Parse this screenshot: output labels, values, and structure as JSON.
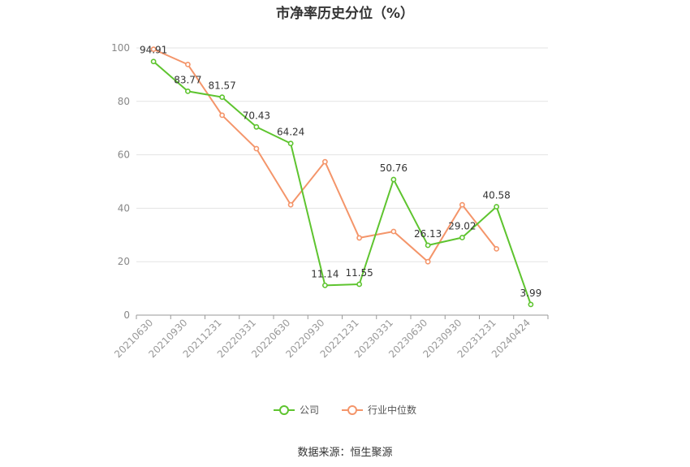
{
  "chart_data": {
    "type": "line",
    "title": "市净率历史分位（%）",
    "categories": [
      "20210630",
      "20210930",
      "20211231",
      "20220331",
      "20220630",
      "20220930",
      "20221231",
      "20230331",
      "20230630",
      "20230930",
      "20231231",
      "20240424"
    ],
    "ylim": [
      0,
      100
    ],
    "yticks": [
      0,
      20,
      40,
      60,
      80,
      100
    ],
    "grid": true,
    "legend_position": "bottom",
    "series": [
      {
        "name": "公司",
        "color": "#5ec42f",
        "values": [
          94.91,
          83.77,
          81.57,
          70.43,
          64.24,
          11.14,
          11.55,
          50.76,
          26.13,
          29.02,
          40.58,
          3.99
        ],
        "labels": [
          "94.91",
          "83.77",
          "81.57",
          "70.43",
          "64.24",
          "11.14",
          "11.55",
          "50.76",
          "26.13",
          "29.02",
          "40.58",
          "3.99"
        ]
      },
      {
        "name": "行业中位数",
        "color": "#f4956a",
        "values": [
          99.5,
          93.8,
          74.8,
          62.3,
          41.3,
          57.4,
          28.9,
          31.3,
          20.0,
          41.3,
          24.8,
          null
        ]
      }
    ]
  },
  "source_text": "数据来源：恒生聚源"
}
